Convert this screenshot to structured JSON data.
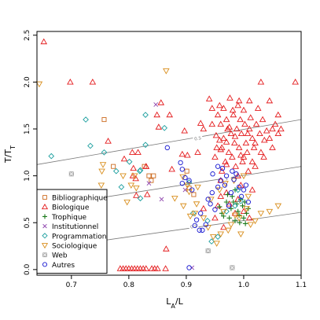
{
  "chart_data": {
    "type": "scatter",
    "xlabel_main": "L",
    "xlabel_sub": "A",
    "xlabel_tail": "/L",
    "ylabel_main": "T/T",
    "ylabel_sub": "T",
    "xlim": [
      0.64,
      1.1
    ],
    "ylim": [
      -0.06,
      2.54
    ],
    "xticks": [
      0.7,
      0.8,
      0.9,
      1.0,
      1.1
    ],
    "xtick_labels": [
      "0.7",
      "0.8",
      "0.9",
      "1.0",
      "1.1"
    ],
    "yticks": [
      0.0,
      0.5,
      1.0,
      1.5,
      2.0,
      2.5
    ],
    "ytick_labels": [
      "0.0",
      "0.5",
      "1.0",
      "1.5",
      "2.0",
      "2.5"
    ],
    "legend_position": "bottom-left",
    "reference_lines": [
      {
        "label": "0.5",
        "x1": 0.64,
        "y1": 0.21,
        "x2": 1.1,
        "y2": 0.61,
        "label_x": 0.913,
        "label_y": 0.46
      },
      {
        "label": "1",
        "x1": 0.64,
        "y1": 0.66,
        "x2": 1.1,
        "y2": 1.1,
        "label_x": 0.97,
        "label_y": 0.97
      },
      {
        "label": "0.5",
        "x1": 0.64,
        "y1": 1.12,
        "x2": 1.1,
        "y2": 1.6,
        "label_x": 0.92,
        "label_y": 1.4
      },
      {
        "label": "0.5",
        "x1": 0.64,
        "y1": 0.21,
        "x2": 1.1,
        "y2": 0.61,
        "label_x": 0.985,
        "label_y": 0.52
      }
    ],
    "series": [
      {
        "name": "Bibliographique",
        "marker": "square",
        "color": "#CC6A1E",
        "points": [
          [
            0.757,
            1.6
          ],
          [
            0.773,
            1.1
          ],
          [
            0.827,
            1.1
          ],
          [
            0.835,
            1.0
          ],
          [
            0.843,
            1.0
          ],
          [
            0.839,
            0.95
          ],
          [
            0.901,
            1.05
          ],
          [
            0.905,
            0.87
          ],
          [
            0.913,
            0.8
          ]
        ]
      },
      {
        "name": "Biologique",
        "marker": "triangle-up",
        "color": "#E41A1C",
        "points": [
          [
            0.652,
            2.43
          ],
          [
            0.698,
            2.0
          ],
          [
            0.737,
            2.0
          ],
          [
            0.764,
            1.37
          ],
          [
            0.792,
            1.18
          ],
          [
            0.806,
            1.25
          ],
          [
            0.816,
            1.25
          ],
          [
            0.83,
            1.1
          ],
          [
            0.807,
            1.0
          ],
          [
            0.812,
            0.97
          ],
          [
            0.813,
            0.79
          ],
          [
            0.849,
            1.65
          ],
          [
            0.856,
            1.78
          ],
          [
            0.852,
            1.52
          ],
          [
            0.871,
            1.65
          ],
          [
            0.875,
            1.07
          ],
          [
            0.893,
            1.23
          ],
          [
            0.897,
            1.48
          ],
          [
            0.902,
            1.22
          ],
          [
            0.92,
            1.25
          ],
          [
            0.925,
            1.56
          ],
          [
            0.93,
            1.5
          ],
          [
            0.83,
            1.1
          ],
          [
            0.808,
            1.08
          ],
          [
            0.865,
            0.22
          ],
          [
            0.832,
            0.8
          ],
          [
            0.785,
            0.01
          ],
          [
            0.79,
            0.01
          ],
          [
            0.795,
            0.01
          ],
          [
            0.8,
            0.01
          ],
          [
            0.805,
            0.01
          ],
          [
            0.81,
            0.01
          ],
          [
            0.815,
            0.01
          ],
          [
            0.82,
            0.01
          ],
          [
            0.825,
            0.01
          ],
          [
            0.83,
            0.01
          ],
          [
            0.84,
            0.01
          ],
          [
            0.845,
            0.01
          ],
          [
            0.85,
            0.01
          ],
          [
            0.864,
            0.01
          ],
          [
            0.94,
            1.82
          ],
          [
            0.945,
            1.72
          ],
          [
            0.952,
            1.43
          ],
          [
            0.955,
            1.65
          ],
          [
            0.958,
            1.38
          ],
          [
            0.96,
            1.55
          ],
          [
            0.962,
            1.3
          ],
          [
            0.965,
            1.72
          ],
          [
            0.968,
            1.15
          ],
          [
            0.97,
            1.6
          ],
          [
            0.972,
            1.5
          ],
          [
            0.974,
            1.25
          ],
          [
            0.976,
            1.83
          ],
          [
            0.978,
            1.45
          ],
          [
            0.98,
            1.2
          ],
          [
            0.982,
            1.65
          ],
          [
            0.984,
            1.35
          ],
          [
            0.986,
            1.1
          ],
          [
            0.988,
            1.5
          ],
          [
            0.99,
            1.75
          ],
          [
            0.992,
            1.3
          ],
          [
            0.994,
            1.6
          ],
          [
            0.996,
            1.45
          ],
          [
            0.998,
            1.15
          ],
          [
            1.0,
            1.7
          ],
          [
            1.002,
            1.55
          ],
          [
            1.004,
            1.35
          ],
          [
            1.006,
            1.25
          ],
          [
            1.008,
            1.05
          ],
          [
            1.01,
            1.5
          ],
          [
            1.012,
            1.62
          ],
          [
            1.015,
            1.4
          ],
          [
            1.018,
            1.3
          ],
          [
            1.02,
            1.1
          ],
          [
            1.022,
            1.55
          ],
          [
            1.025,
            1.72
          ],
          [
            1.028,
            1.45
          ],
          [
            1.03,
            1.25
          ],
          [
            1.033,
            1.6
          ],
          [
            1.036,
            1.38
          ],
          [
            1.04,
            1.48
          ],
          [
            1.045,
            1.8
          ],
          [
            1.05,
            1.3
          ],
          [
            1.055,
            1.55
          ],
          [
            1.06,
            1.45
          ],
          [
            1.065,
            1.5
          ],
          [
            1.03,
            2.0
          ],
          [
            1.09,
            2.0
          ],
          [
            0.96,
            1.28
          ],
          [
            0.97,
            1.36
          ],
          [
            0.975,
            1.52
          ],
          [
            0.985,
            1.42
          ],
          [
            0.995,
            1.22
          ],
          [
            1.01,
            1.8
          ],
          [
            0.95,
            1.2
          ],
          [
            0.958,
            1.75
          ],
          [
            0.992,
            1.8
          ],
          [
            1.0,
            1.2
          ],
          [
            1.015,
            1.15
          ],
          [
            0.965,
            1.4
          ],
          [
            0.981,
            1.7
          ],
          [
            1.007,
            1.45
          ],
          [
            1.02,
            1.35
          ],
          [
            1.035,
            1.2
          ],
          [
            1.05,
            1.5
          ],
          [
            0.99,
            1.0
          ],
          [
            0.962,
            1.05
          ],
          [
            0.97,
            1.12
          ],
          [
            1.045,
            1.4
          ],
          [
            1.06,
            1.65
          ],
          [
            0.945,
            1.55
          ],
          [
            0.953,
            1.3
          ],
          [
            0.93,
            0.65
          ],
          [
            0.95,
            0.55
          ],
          [
            0.965,
            0.45
          ],
          [
            0.96,
            0.95
          ],
          [
            0.985,
            0.6
          ],
          [
            1.0,
            0.62
          ],
          [
            0.97,
            0.82
          ],
          [
            0.975,
            0.7
          ],
          [
            0.99,
            0.75
          ],
          [
            1.01,
            0.55
          ],
          [
            1.015,
            0.85
          ],
          [
            0.995,
            0.9
          ],
          [
            0.96,
            0.78
          ],
          [
            0.955,
            0.68
          ]
        ]
      },
      {
        "name": "Trophique",
        "marker": "plus",
        "color": "#1B7A1B",
        "points": [
          [
            0.958,
            0.67
          ],
          [
            0.962,
            0.6
          ],
          [
            0.97,
            0.72
          ],
          [
            0.975,
            0.55
          ],
          [
            0.978,
            0.65
          ],
          [
            0.98,
            0.78
          ],
          [
            0.985,
            0.52
          ],
          [
            0.988,
            0.7
          ],
          [
            0.99,
            0.62
          ],
          [
            0.992,
            0.58
          ],
          [
            0.995,
            0.75
          ],
          [
            0.998,
            0.68
          ],
          [
            1.0,
            0.55
          ],
          [
            1.002,
            0.72
          ],
          [
            1.005,
            0.6
          ],
          [
            1.008,
            0.65
          ],
          [
            0.972,
            0.8
          ],
          [
            0.985,
            0.85
          ],
          [
            0.993,
            0.5
          ],
          [
            1.003,
            0.49
          ],
          [
            0.965,
            0.57
          ],
          [
            0.982,
            0.72
          ]
        ]
      },
      {
        "name": "Institutionnel",
        "marker": "cross",
        "color": "#8E44AD",
        "points": [
          [
            0.847,
            1.76
          ],
          [
            0.835,
            0.92
          ],
          [
            0.857,
            0.75
          ],
          [
            0.898,
            0.85
          ],
          [
            0.91,
            0.02
          ]
        ]
      },
      {
        "name": "Programmation",
        "marker": "diamond",
        "color": "#1A9E9E",
        "points": [
          [
            0.665,
            1.21
          ],
          [
            0.725,
            1.6
          ],
          [
            0.733,
            1.32
          ],
          [
            0.757,
            1.25
          ],
          [
            0.778,
            1.05
          ],
          [
            0.787,
            0.88
          ],
          [
            0.801,
            1.15
          ],
          [
            0.819,
            1.05
          ],
          [
            0.82,
            1.06
          ],
          [
            0.829,
            1.65
          ],
          [
            0.829,
            1.33
          ],
          [
            0.82,
            0.76
          ],
          [
            0.862,
            1.51
          ],
          [
            0.905,
            0.93
          ],
          [
            0.912,
            0.6
          ],
          [
            0.937,
            0.52
          ],
          [
            0.944,
            0.3
          ],
          [
            0.955,
            0.35
          ],
          [
            0.97,
            0.62
          ],
          [
            0.985,
            0.68
          ],
          [
            0.995,
            0.73
          ],
          [
            0.99,
            0.85
          ]
        ]
      },
      {
        "name": "Sociologique",
        "marker": "triangle-down",
        "color": "#D98F1E",
        "points": [
          [
            0.644,
            1.98
          ],
          [
            0.755,
            1.12
          ],
          [
            0.753,
            1.05
          ],
          [
            0.752,
            0.9
          ],
          [
            0.79,
            1.0
          ],
          [
            0.797,
            0.72
          ],
          [
            0.804,
            0.9
          ],
          [
            0.813,
            0.87
          ],
          [
            0.81,
            1.0
          ],
          [
            0.865,
            2.12
          ],
          [
            0.894,
            0.99
          ],
          [
            0.902,
            0.9
          ],
          [
            0.905,
            0.83
          ],
          [
            0.907,
            0.57
          ],
          [
            0.915,
            0.6
          ],
          [
            0.918,
            0.7
          ],
          [
            0.93,
            0.55
          ],
          [
            0.938,
            0.45
          ],
          [
            0.947,
            0.35
          ],
          [
            0.953,
            0.28
          ],
          [
            0.96,
            0.38
          ],
          [
            0.965,
            0.62
          ],
          [
            0.973,
            0.42
          ],
          [
            0.978,
            0.48
          ],
          [
            0.985,
            0.58
          ],
          [
            0.992,
            0.55
          ],
          [
            0.995,
            0.38
          ],
          [
            1.0,
            1.0
          ],
          [
            1.005,
            0.65
          ],
          [
            1.012,
            0.48
          ],
          [
            1.02,
            0.52
          ],
          [
            1.03,
            0.6
          ],
          [
            1.045,
            0.62
          ],
          [
            1.06,
            0.68
          ],
          [
            0.92,
            0.88
          ],
          [
            0.943,
            0.75
          ],
          [
            0.958,
            0.85
          ],
          [
            0.968,
            0.92
          ],
          [
            0.983,
            0.95
          ],
          [
            1.008,
            0.78
          ],
          [
            0.88,
            0.76
          ],
          [
            0.895,
            0.68
          ]
        ]
      },
      {
        "name": "Web",
        "marker": "square-x",
        "color": "#999999",
        "points": [
          [
            0.7,
            1.02
          ],
          [
            0.938,
            0.2
          ],
          [
            0.98,
            0.02
          ]
        ]
      },
      {
        "name": "Autres",
        "marker": "circle",
        "color": "#1515D0",
        "points": [
          [
            0.867,
            1.3
          ],
          [
            0.89,
            1.14
          ],
          [
            0.893,
            1.07
          ],
          [
            0.893,
            0.92
          ],
          [
            0.898,
            0.98
          ],
          [
            0.905,
            0.95
          ],
          [
            0.91,
            0.85
          ],
          [
            0.915,
            0.47
          ],
          [
            0.918,
            0.53
          ],
          [
            0.923,
            0.42
          ],
          [
            0.928,
            0.42
          ],
          [
            0.934,
            0.48
          ],
          [
            0.938,
            0.75
          ],
          [
            0.942,
            0.7
          ],
          [
            0.946,
            1.02
          ],
          [
            0.95,
            0.64
          ],
          [
            0.955,
            0.88
          ],
          [
            0.96,
            0.95
          ],
          [
            0.963,
            1.08
          ],
          [
            0.967,
            0.9
          ],
          [
            0.97,
            1.0
          ],
          [
            0.974,
            0.68
          ],
          [
            0.978,
            0.82
          ],
          [
            0.983,
            0.96
          ],
          [
            0.987,
            1.02
          ],
          [
            0.992,
            0.88
          ],
          [
            0.996,
            0.78
          ],
          [
            1.0,
            0.85
          ],
          [
            1.004,
            0.9
          ],
          [
            1.008,
            0.72
          ],
          [
            0.905,
            0.02
          ],
          [
            0.925,
            0.6
          ],
          [
            0.945,
            0.82
          ],
          [
            0.955,
            1.1
          ],
          [
            0.98,
            1.05
          ]
        ]
      }
    ]
  }
}
